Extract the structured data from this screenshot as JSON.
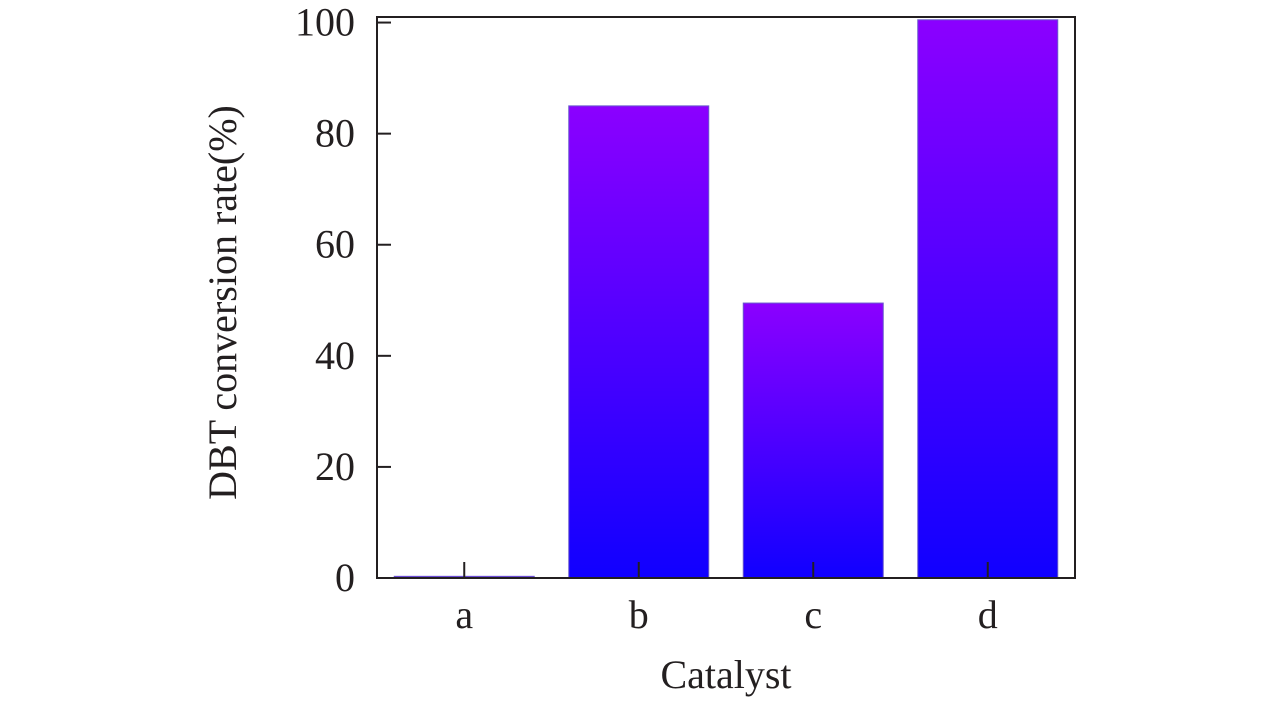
{
  "chart_data": {
    "type": "bar",
    "categories": [
      "a",
      "b",
      "c",
      "d"
    ],
    "values": [
      0.3,
      85,
      49.5,
      100.5
    ],
    "title": "",
    "xlabel": "Catalyst",
    "ylabel": "DBT conversion rate(%)",
    "ylim": [
      0,
      101
    ],
    "yticks": [
      0,
      20,
      40,
      60,
      80,
      100
    ],
    "grid": false,
    "legend": "none",
    "bar_colors": {
      "top": "#8b00ff",
      "bottom": "#1000ff",
      "edge": "#6a5acd"
    },
    "axis_color": "#231f20"
  }
}
